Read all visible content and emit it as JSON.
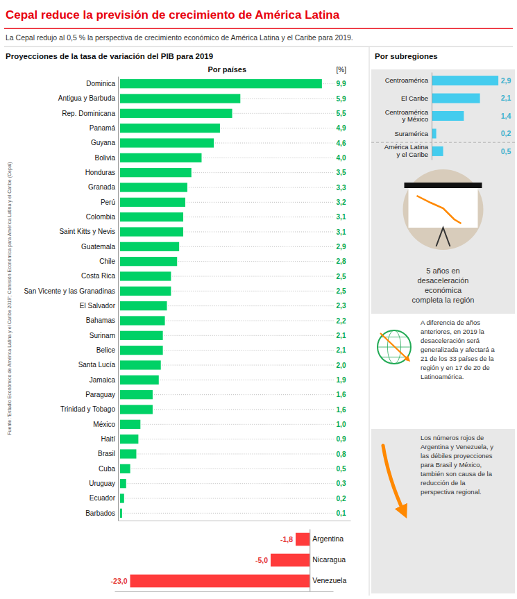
{
  "chart_data": [
    {
      "type": "bar",
      "orientation": "horizontal",
      "title": "Cepal reduce la previsión de crecimiento de América Latina",
      "subtitle": "La Cepal redujo al 0,5 % la perspectiva de crecimiento económico de América Latina y el Caribe para 2019.",
      "annotations": [
        "Proyecciones de la tasa de variación del PIB para 2019",
        "Por países",
        "[%]",
        "Fuente: 'Estudio Económico de América Latina y el Caribe 2019'; Comisión Económica para América Latina y el Caribe (Cepal)"
      ],
      "categories": [
        "Dominica",
        "Antigua y Barbuda",
        "Rep. Dominicana",
        "Panamá",
        "Guyana",
        "Bolivia",
        "Honduras",
        "Granada",
        "Perú",
        "Colombia",
        "Saint Kitts y Nevis",
        "Guatemala",
        "Chile",
        "Costa Rica",
        "San Vicente y las Granadinas",
        "El Salvador",
        "Bahamas",
        "Surinam",
        "Belice",
        "Santa Lucía",
        "Jamaica",
        "Paraguay",
        "Trinidad y Tobago",
        "México",
        "Haití",
        "Brasil",
        "Cuba",
        "Uruguay",
        "Ecuador",
        "Barbados"
      ],
      "values": [
        9.9,
        5.9,
        5.5,
        4.9,
        4.6,
        4.0,
        3.5,
        3.3,
        3.2,
        3.1,
        3.1,
        2.9,
        2.8,
        2.5,
        2.5,
        2.3,
        2.2,
        2.1,
        2.1,
        2.0,
        1.9,
        1.6,
        1.6,
        1.0,
        0.9,
        0.8,
        0.5,
        0.3,
        0.2,
        0.1
      ],
      "value_labels": [
        "9,9",
        "5,9",
        "5,5",
        "4,9",
        "4,6",
        "4,0",
        "3,5",
        "3,3",
        "3,2",
        "3,1",
        "3,1",
        "2,9",
        "2,8",
        "2,5",
        "2,5",
        "2,3",
        "2,2",
        "2,1",
        "2,1",
        "2,0",
        "1,9",
        "1,6",
        "1,6",
        "1,0",
        "0,9",
        "0,8",
        "0,5",
        "0,3",
        "0,2",
        "0,1"
      ],
      "color": "#00D166",
      "xlim": [
        -0.1,
        11.3
      ],
      "data_labels": true,
      "tick_labels": "y",
      "grid": false
    },
    {
      "type": "bar",
      "orientation": "horizontal",
      "categories": [
        "Argentina",
        "Nicaragua",
        "Venezuela"
      ],
      "values": [
        -1.8,
        -5.0,
        -23.0
      ],
      "value_labels": [
        "-1,8",
        "-5,0",
        "-23,0"
      ],
      "color": "#FF3B3B",
      "xlim": [
        -25,
        3
      ],
      "data_labels": true,
      "tick_labels": "y",
      "grid": false
    },
    {
      "type": "bar",
      "orientation": "horizontal",
      "title": "Por subregiones",
      "categories": [
        "Centroamérica",
        "El Caribe",
        "Centroamérica\ny México",
        "Suramérica",
        "América Latina\ny el Caribe"
      ],
      "values": [
        2.9,
        2.1,
        1.4,
        0.2,
        0.5
      ],
      "value_labels": [
        "2,9",
        "2,1",
        "1,4",
        "0,2",
        "0,5"
      ],
      "annotations": [
        "5 años en\ndesaceleración\neconómica\ncompleta la región",
        "A diferencia de años\nanteriores, en 2019 la\ndesaceleración será\ngeneralizada y afectará a\n21 de los 33 países de la\nregión y en 17 de 20 de\nLatinoamérica.",
        "Los números rojos de\nArgentina y Venezuela, y\nlas débiles proyecciones\npara Brasil y México,\ntambién son causa de la\nreducción de la\nperspectiva regional."
      ],
      "color": "#44CCEE",
      "xlim": [
        0,
        3.5
      ],
      "data_labels": true,
      "tick_labels": "y",
      "grid": false
    }
  ]
}
